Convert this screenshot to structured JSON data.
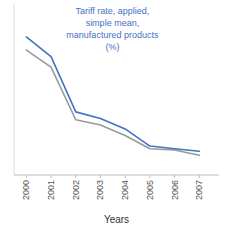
{
  "chart_data": {
    "type": "line",
    "x": [
      2000,
      2001,
      2002,
      2003,
      2004,
      2005,
      2006,
      2007
    ],
    "series": [
      {
        "color": "#4472C4",
        "values": [
          20.5,
          19.0,
          14.8,
          14.3,
          13.5,
          12.2,
          12.0,
          11.8
        ]
      },
      {
        "color": "#999999",
        "values": [
          19.5,
          18.2,
          14.2,
          13.8,
          13.0,
          12.0,
          11.9,
          11.5
        ]
      }
    ],
    "annotations": [
      "Tariff rate, applied,\nsimple mean,\nmanufactured products\n(%)"
    ],
    "x_label": "Years",
    "xlim": [
      1999.5,
      2007.8
    ],
    "xticks": [
      2000,
      2001,
      2002,
      2003,
      2004,
      2005,
      2006,
      2007
    ],
    "ylim": [
      10,
      23
    ],
    "tick_labels": "x"
  }
}
